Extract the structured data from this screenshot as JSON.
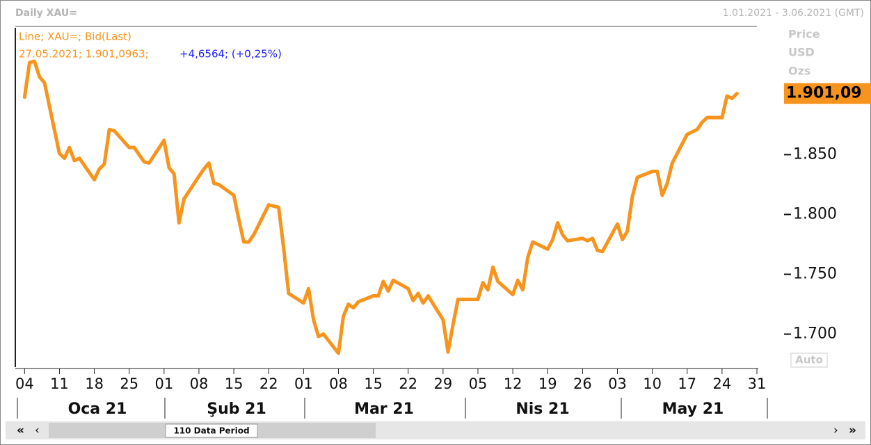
{
  "chart_data": {
    "type": "line",
    "title": "Daily XAU=",
    "date_range": "1.01.2021 - 3.06.2021 (GMT)",
    "axis_labels": [
      "Price",
      "USD",
      "Ozs"
    ],
    "legend_line1": "Line; XAU=; Bid(Last)",
    "legend_line2": "27.05.2021; 1.901,0963;",
    "legend_change": "+4,6564; (+0,25%)",
    "last_value_label": "1.901,09",
    "auto_label": "Auto",
    "period_label": "110 Data Period",
    "months": [
      "Oca 21",
      "Şub 21",
      "Mar 21",
      "Nis 21",
      "May 21"
    ],
    "xlim": [
      "2021-01-02",
      "2021-05-31"
    ],
    "xticks": [
      {
        "value": "2021-01-04",
        "label": "04"
      },
      {
        "value": "2021-01-11",
        "label": "11"
      },
      {
        "value": "2021-01-18",
        "label": "18"
      },
      {
        "value": "2021-01-25",
        "label": "25"
      },
      {
        "value": "2021-02-01",
        "label": "01"
      },
      {
        "value": "2021-02-08",
        "label": "08"
      },
      {
        "value": "2021-02-15",
        "label": "15"
      },
      {
        "value": "2021-02-22",
        "label": "22"
      },
      {
        "value": "2021-03-01",
        "label": "01"
      },
      {
        "value": "2021-03-08",
        "label": "08"
      },
      {
        "value": "2021-03-15",
        "label": "15"
      },
      {
        "value": "2021-03-22",
        "label": "22"
      },
      {
        "value": "2021-03-29",
        "label": "29"
      },
      {
        "value": "2021-04-05",
        "label": "05"
      },
      {
        "value": "2021-04-12",
        "label": "12"
      },
      {
        "value": "2021-04-19",
        "label": "19"
      },
      {
        "value": "2021-04-26",
        "label": "26"
      },
      {
        "value": "2021-05-03",
        "label": "03"
      },
      {
        "value": "2021-05-10",
        "label": "10"
      },
      {
        "value": "2021-05-17",
        "label": "17"
      },
      {
        "value": "2021-05-24",
        "label": "24"
      },
      {
        "value": "2021-05-31",
        "label": "31"
      }
    ],
    "ylim": [
      1673,
      1956
    ],
    "yticks": [
      {
        "value": 1700,
        "label": "1.700"
      },
      {
        "value": 1750,
        "label": "1.750"
      },
      {
        "value": 1800,
        "label": "1.800"
      },
      {
        "value": 1850,
        "label": "1.850"
      }
    ],
    "x": [
      "2021-01-04",
      "2021-01-05",
      "2021-01-06",
      "2021-01-07",
      "2021-01-08",
      "2021-01-11",
      "2021-01-12",
      "2021-01-13",
      "2021-01-14",
      "2021-01-15",
      "2021-01-18",
      "2021-01-19",
      "2021-01-20",
      "2021-01-21",
      "2021-01-22",
      "2021-01-25",
      "2021-01-26",
      "2021-01-27",
      "2021-01-28",
      "2021-01-29",
      "2021-02-01",
      "2021-02-02",
      "2021-02-03",
      "2021-02-04",
      "2021-02-05",
      "2021-02-08",
      "2021-02-09",
      "2021-02-10",
      "2021-02-11",
      "2021-02-12",
      "2021-02-15",
      "2021-02-16",
      "2021-02-17",
      "2021-02-18",
      "2021-02-19",
      "2021-02-22",
      "2021-02-23",
      "2021-02-24",
      "2021-02-25",
      "2021-02-26",
      "2021-03-01",
      "2021-03-02",
      "2021-03-03",
      "2021-03-04",
      "2021-03-05",
      "2021-03-08",
      "2021-03-09",
      "2021-03-10",
      "2021-03-11",
      "2021-03-12",
      "2021-03-15",
      "2021-03-16",
      "2021-03-17",
      "2021-03-18",
      "2021-03-19",
      "2021-03-22",
      "2021-03-23",
      "2021-03-24",
      "2021-03-25",
      "2021-03-26",
      "2021-03-29",
      "2021-03-30",
      "2021-03-31",
      "2021-04-01",
      "2021-04-02",
      "2021-04-05",
      "2021-04-06",
      "2021-04-07",
      "2021-04-08",
      "2021-04-09",
      "2021-04-12",
      "2021-04-13",
      "2021-04-14",
      "2021-04-15",
      "2021-04-16",
      "2021-04-19",
      "2021-04-20",
      "2021-04-21",
      "2021-04-22",
      "2021-04-23",
      "2021-04-26",
      "2021-04-27",
      "2021-04-28",
      "2021-04-29",
      "2021-04-30",
      "2021-05-03",
      "2021-05-04",
      "2021-05-05",
      "2021-05-06",
      "2021-05-07",
      "2021-05-10",
      "2021-05-11",
      "2021-05-12",
      "2021-05-13",
      "2021-05-14",
      "2021-05-17",
      "2021-05-18",
      "2021-05-19",
      "2021-05-20",
      "2021-05-21",
      "2021-05-24",
      "2021-05-25",
      "2021-05-26",
      "2021-05-27"
    ],
    "series": [
      {
        "name": "XAU=",
        "color": "#f7941d",
        "values": [
          1898,
          1927,
          1928,
          1915,
          1910,
          1851,
          1847,
          1856,
          1845,
          1847,
          1829,
          1838,
          1842,
          1871,
          1870,
          1856,
          1856,
          1850,
          1844,
          1843,
          1862,
          1839,
          1834,
          1793,
          1813,
          1832,
          1838,
          1843,
          1826,
          1825,
          1816,
          1796,
          1777,
          1777,
          1783,
          1808,
          1807,
          1806,
          1772,
          1734,
          1726,
          1738,
          1712,
          1698,
          1700,
          1684,
          1715,
          1725,
          1722,
          1727,
          1732,
          1732,
          1744,
          1736,
          1745,
          1738,
          1728,
          1734,
          1726,
          1732,
          1712,
          1685,
          1708,
          1729,
          1729,
          1729,
          1743,
          1737,
          1756,
          1744,
          1733,
          1745,
          1737,
          1764,
          1777,
          1771,
          1779,
          1793,
          1783,
          1778,
          1780,
          1778,
          1780,
          1770,
          1769,
          1792,
          1779,
          1786,
          1815,
          1831,
          1836,
          1836,
          1816,
          1826,
          1843,
          1867,
          1869,
          1871,
          1877,
          1881,
          1881,
          1899,
          1897,
          1901.0963
        ]
      }
    ]
  }
}
